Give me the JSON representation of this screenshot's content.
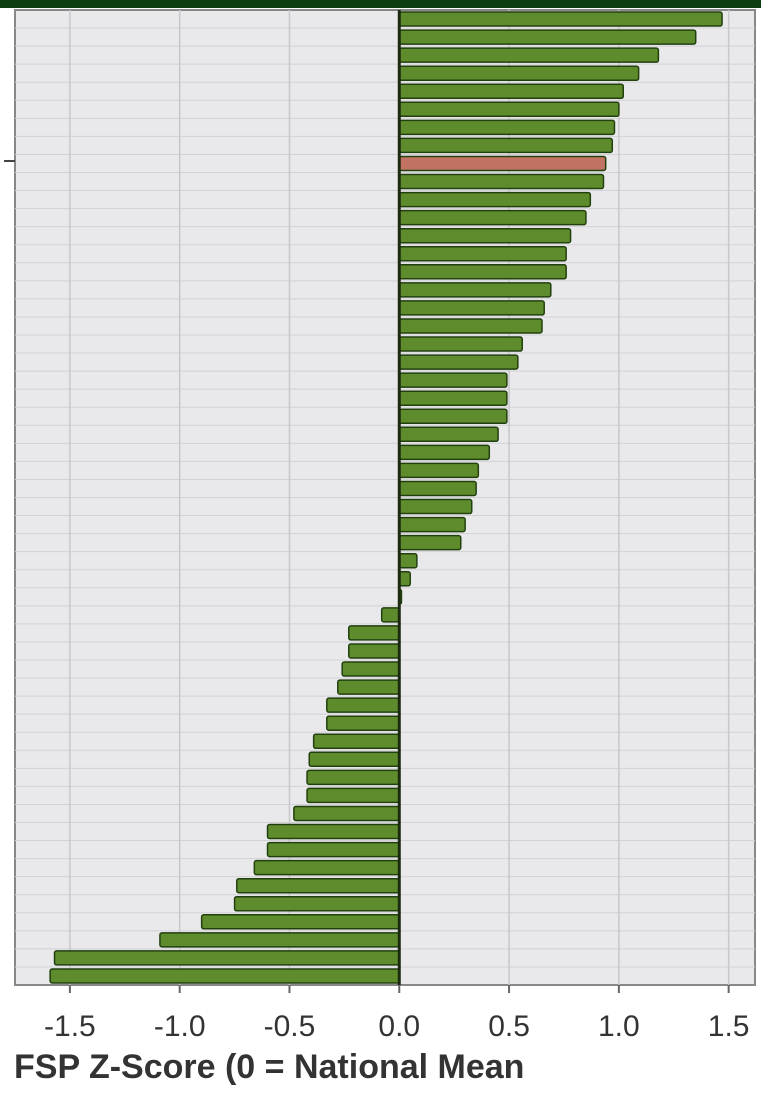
{
  "chart_data": {
    "type": "barh",
    "xlabel": "FSP Z-Score (0 = National Mean",
    "categories": [
      null,
      null,
      null,
      null,
      null,
      null,
      null,
      null,
      null,
      null,
      null,
      null,
      null,
      null,
      null,
      null,
      null,
      null,
      null,
      null,
      null,
      null,
      null,
      null,
      null,
      null,
      null,
      null,
      null,
      null,
      null,
      null,
      null,
      null,
      null,
      null,
      null,
      null,
      null,
      null,
      null,
      null,
      null,
      null,
      null,
      null,
      null,
      null,
      null,
      null,
      null,
      null,
      null,
      null
    ],
    "values": [
      1.47,
      1.35,
      1.18,
      1.09,
      1.02,
      1.0,
      0.98,
      0.97,
      0.94,
      0.93,
      0.87,
      0.85,
      0.78,
      0.76,
      0.76,
      0.69,
      0.66,
      0.65,
      0.56,
      0.54,
      0.49,
      0.49,
      0.49,
      0.45,
      0.41,
      0.36,
      0.35,
      0.33,
      0.3,
      0.28,
      0.08,
      0.05,
      0.01,
      -0.08,
      -0.23,
      -0.23,
      -0.26,
      -0.28,
      -0.33,
      -0.33,
      -0.39,
      -0.41,
      -0.42,
      -0.42,
      -0.48,
      -0.6,
      -0.6,
      -0.66,
      -0.74,
      -0.75,
      -0.9,
      -1.09,
      -1.57,
      -1.59
    ],
    "colors": [
      "#5e8c2c",
      "#5e8c2c",
      "#5e8c2c",
      "#5e8c2c",
      "#5e8c2c",
      "#5e8c2c",
      "#5e8c2c",
      "#5e8c2c",
      "#c27262",
      "#5e8c2c",
      "#5e8c2c",
      "#5e8c2c",
      "#5e8c2c",
      "#5e8c2c",
      "#5e8c2c",
      "#5e8c2c",
      "#5e8c2c",
      "#5e8c2c",
      "#5e8c2c",
      "#5e8c2c",
      "#5e8c2c",
      "#5e8c2c",
      "#5e8c2c",
      "#5e8c2c",
      "#5e8c2c",
      "#5e8c2c",
      "#5e8c2c",
      "#5e8c2c",
      "#5e8c2c",
      "#5e8c2c",
      "#5e8c2c",
      "#5e8c2c",
      "#5e8c2c",
      "#5e8c2c",
      "#5e8c2c",
      "#5e8c2c",
      "#5e8c2c",
      "#5e8c2c",
      "#5e8c2c",
      "#5e8c2c",
      "#5e8c2c",
      "#5e8c2c",
      "#5e8c2c",
      "#5e8c2c",
      "#5e8c2c",
      "#5e8c2c",
      "#5e8c2c",
      "#5e8c2c",
      "#5e8c2c",
      "#5e8c2c",
      "#5e8c2c",
      "#5e8c2c",
      "#5e8c2c",
      "#5e8c2c"
    ],
    "xlim": [
      -1.75,
      1.62
    ],
    "xticks": [
      -1.5,
      {
        "value": -1.0,
        "label": "-1.0"
      },
      -0.5,
      {
        "value": 0.0,
        "label": "0.0"
      },
      0.5,
      {
        "value": 1.0,
        "label": "1.0"
      },
      1.5
    ],
    "grid": true
  }
}
